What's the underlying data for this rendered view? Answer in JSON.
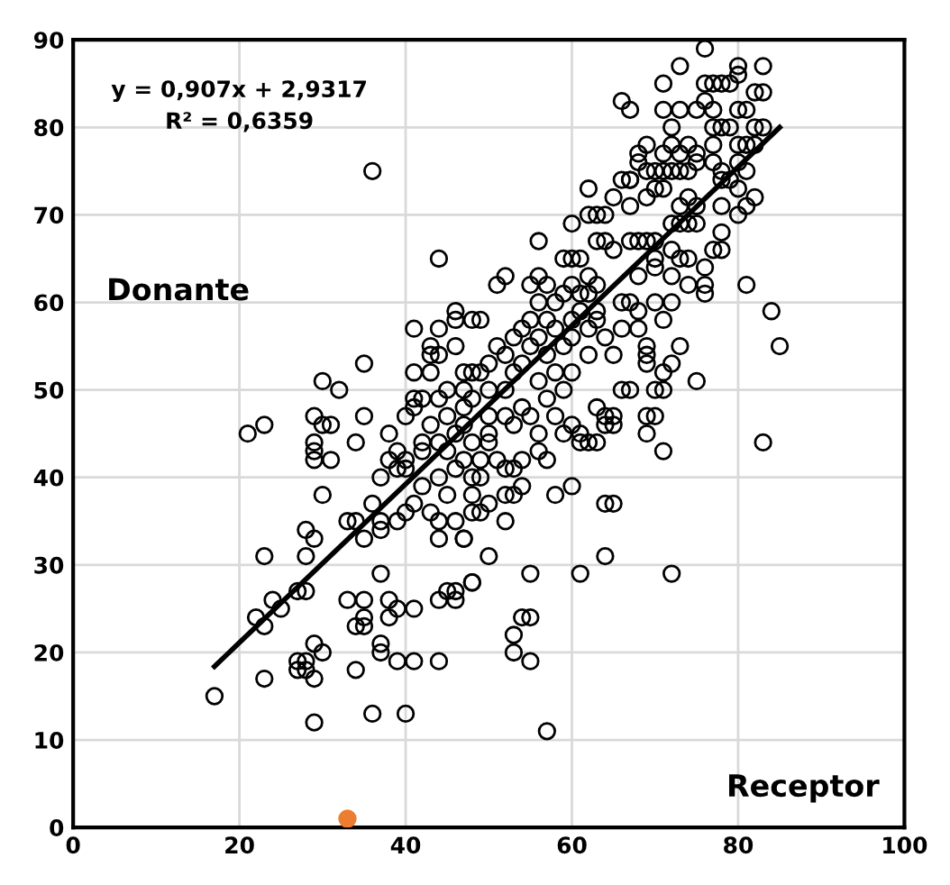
{
  "chart_data": {
    "type": "scatter",
    "xlabel": "Receptor",
    "ylabel": "Donante",
    "annotations": [
      "y = 0,907x + 2,9317",
      "R² = 0,6359"
    ],
    "xlim": [
      0,
      100
    ],
    "xticks": [
      0,
      20,
      40,
      60,
      80,
      100
    ],
    "ylim": [
      0,
      90
    ],
    "yticks": [
      0,
      10,
      20,
      30,
      40,
      50,
      60,
      70,
      80,
      90
    ],
    "grid": true,
    "series": [
      {
        "color": "#000000",
        "marker": "circle",
        "x": [
          17,
          23,
          29,
          36,
          40,
          27,
          28,
          27,
          28,
          29,
          30,
          29,
          34,
          37,
          37,
          39,
          41,
          44,
          23,
          28,
          28,
          29,
          22,
          23,
          24,
          25,
          27,
          28,
          33,
          35,
          34,
          35,
          35,
          38,
          38,
          39,
          41,
          37,
          44,
          45,
          46,
          46,
          48,
          30,
          33,
          34,
          35,
          36,
          37,
          37,
          39,
          40,
          44,
          44,
          46,
          47,
          21,
          23,
          29,
          30,
          31,
          29,
          29,
          29,
          31,
          34,
          35,
          37,
          36,
          44,
          35,
          30,
          32,
          41,
          43,
          44,
          46,
          46,
          48,
          49,
          43,
          44,
          46,
          41,
          43,
          41,
          42,
          44,
          47,
          48,
          76,
          73,
          80,
          83,
          71,
          76,
          77,
          78,
          79,
          80,
          82,
          83,
          66,
          67,
          71,
          72,
          73,
          75,
          76,
          77,
          80,
          81,
          82,
          83,
          77,
          78,
          80,
          81,
          68,
          68,
          69,
          70,
          71,
          72,
          73,
          74,
          72,
          74,
          75,
          77,
          78,
          81,
          62,
          66,
          67,
          69,
          70,
          71,
          73,
          74,
          75,
          78,
          79,
          80,
          81,
          78,
          62,
          63,
          64,
          60,
          65,
          67,
          56,
          59,
          60,
          61,
          63,
          64,
          65,
          67,
          68,
          69,
          70,
          72,
          73,
          74,
          75,
          70,
          72,
          73,
          74,
          77,
          78,
          56,
          51,
          52,
          55,
          57,
          60,
          61,
          62,
          76,
          76,
          81,
          84,
          85,
          67,
          68,
          70,
          71,
          72,
          66,
          68,
          63,
          63,
          65,
          69,
          69,
          69,
          73,
          72,
          71,
          70,
          71,
          66,
          67,
          75,
          63,
          64,
          64,
          69,
          70,
          83,
          71,
          69,
          65,
          65,
          59,
          60,
          61,
          61,
          62,
          63,
          56,
          57,
          58,
          60,
          64,
          65,
          64,
          61,
          55,
          72,
          54,
          55,
          53,
          53,
          55,
          57,
          50,
          48,
          52,
          47,
          52,
          53,
          54,
          52,
          53,
          54,
          48,
          48,
          49,
          50,
          48,
          49,
          50,
          50,
          38,
          39,
          39,
          40,
          40,
          38,
          40,
          41,
          42,
          42,
          43,
          44,
          45,
          45,
          46,
          47,
          47,
          45,
          47,
          48,
          49,
          50,
          50,
          51,
          52,
          52,
          53,
          53,
          54,
          54,
          55,
          55,
          56,
          56,
          57,
          57,
          58,
          58,
          59,
          59,
          60,
          60,
          61,
          62,
          62,
          63,
          58,
          56,
          54,
          52,
          50,
          48,
          46,
          44,
          42,
          41,
          43,
          45,
          55,
          57,
          59,
          53,
          51,
          49,
          47,
          56,
          58,
          60,
          62,
          64,
          66,
          68,
          70,
          72,
          74,
          76,
          78,
          80,
          82,
          80,
          82,
          79,
          77,
          75,
          73,
          71,
          69,
          67
        ],
        "values": [
          15,
          17,
          12,
          13,
          13,
          19,
          19,
          18,
          18,
          17,
          20,
          21,
          18,
          21,
          20,
          19,
          19,
          19,
          31,
          31,
          34,
          33,
          24,
          23,
          26,
          25,
          27,
          27,
          26,
          26,
          23,
          23,
          24,
          26,
          24,
          25,
          25,
          29,
          26,
          27,
          27,
          26,
          28,
          38,
          35,
          35,
          33,
          37,
          35,
          34,
          35,
          36,
          33,
          35,
          35,
          33,
          45,
          46,
          47,
          46,
          46,
          44,
          43,
          42,
          42,
          44,
          47,
          40,
          75,
          65,
          53,
          51,
          50,
          57,
          55,
          57,
          59,
          58,
          58,
          58,
          54,
          54,
          55,
          52,
          52,
          49,
          49,
          49,
          52,
          52,
          89,
          87,
          87,
          87,
          85,
          85,
          85,
          85,
          85,
          86,
          84,
          84,
          83,
          82,
          82,
          80,
          82,
          82,
          83,
          82,
          82,
          82,
          80,
          80,
          80,
          80,
          78,
          78,
          77,
          76,
          75,
          75,
          75,
          75,
          75,
          75,
          78,
          78,
          76,
          76,
          75,
          75,
          73,
          74,
          74,
          72,
          73,
          73,
          71,
          72,
          71,
          74,
          74,
          73,
          71,
          71,
          70,
          70,
          70,
          69,
          72,
          71,
          67,
          65,
          65,
          65,
          67,
          67,
          66,
          67,
          67,
          67,
          67,
          69,
          69,
          69,
          69,
          65,
          66,
          65,
          65,
          66,
          68,
          63,
          62,
          63,
          62,
          62,
          62,
          61,
          61,
          62,
          61,
          62,
          59,
          55,
          60,
          59,
          60,
          58,
          60,
          57,
          57,
          59,
          58,
          54,
          55,
          54,
          53,
          55,
          53,
          52,
          50,
          50,
          50,
          50,
          51,
          48,
          47,
          46,
          47,
          47,
          44,
          43,
          45,
          47,
          46,
          45,
          46,
          45,
          44,
          44,
          44,
          43,
          42,
          38,
          39,
          37,
          37,
          31,
          29,
          29,
          29,
          24,
          24,
          22,
          20,
          19,
          11,
          31,
          28,
          35,
          33,
          38,
          38,
          39,
          41,
          41,
          42,
          38,
          36,
          36,
          37,
          40,
          42,
          44,
          45,
          42,
          43,
          41,
          42,
          41,
          45,
          47,
          48,
          44,
          43,
          46,
          44,
          47,
          43,
          45,
          46,
          48,
          50,
          50,
          49,
          52,
          50,
          53,
          55,
          54,
          50,
          56,
          52,
          57,
          53,
          55,
          58,
          56,
          60,
          58,
          54,
          57,
          60,
          61,
          55,
          58,
          56,
          59,
          57,
          63,
          62,
          52,
          51,
          48,
          47,
          47,
          44,
          41,
          40,
          39,
          37,
          36,
          38,
          47,
          49,
          50,
          46,
          42,
          40,
          42,
          45,
          47,
          52,
          54,
          56,
          60,
          63,
          64,
          63,
          62,
          64,
          66,
          70,
          72,
          76,
          78,
          80,
          78,
          77,
          77,
          77,
          78,
          74
        ]
      },
      {
        "color": "#ed7d31",
        "marker": "circle",
        "x": [
          33
        ],
        "values": [
          1
        ]
      },
      {
        "type": "line",
        "color": "#000000",
        "x": [
          17,
          85
        ],
        "values": [
          18.4,
          80.0
        ]
      }
    ]
  }
}
